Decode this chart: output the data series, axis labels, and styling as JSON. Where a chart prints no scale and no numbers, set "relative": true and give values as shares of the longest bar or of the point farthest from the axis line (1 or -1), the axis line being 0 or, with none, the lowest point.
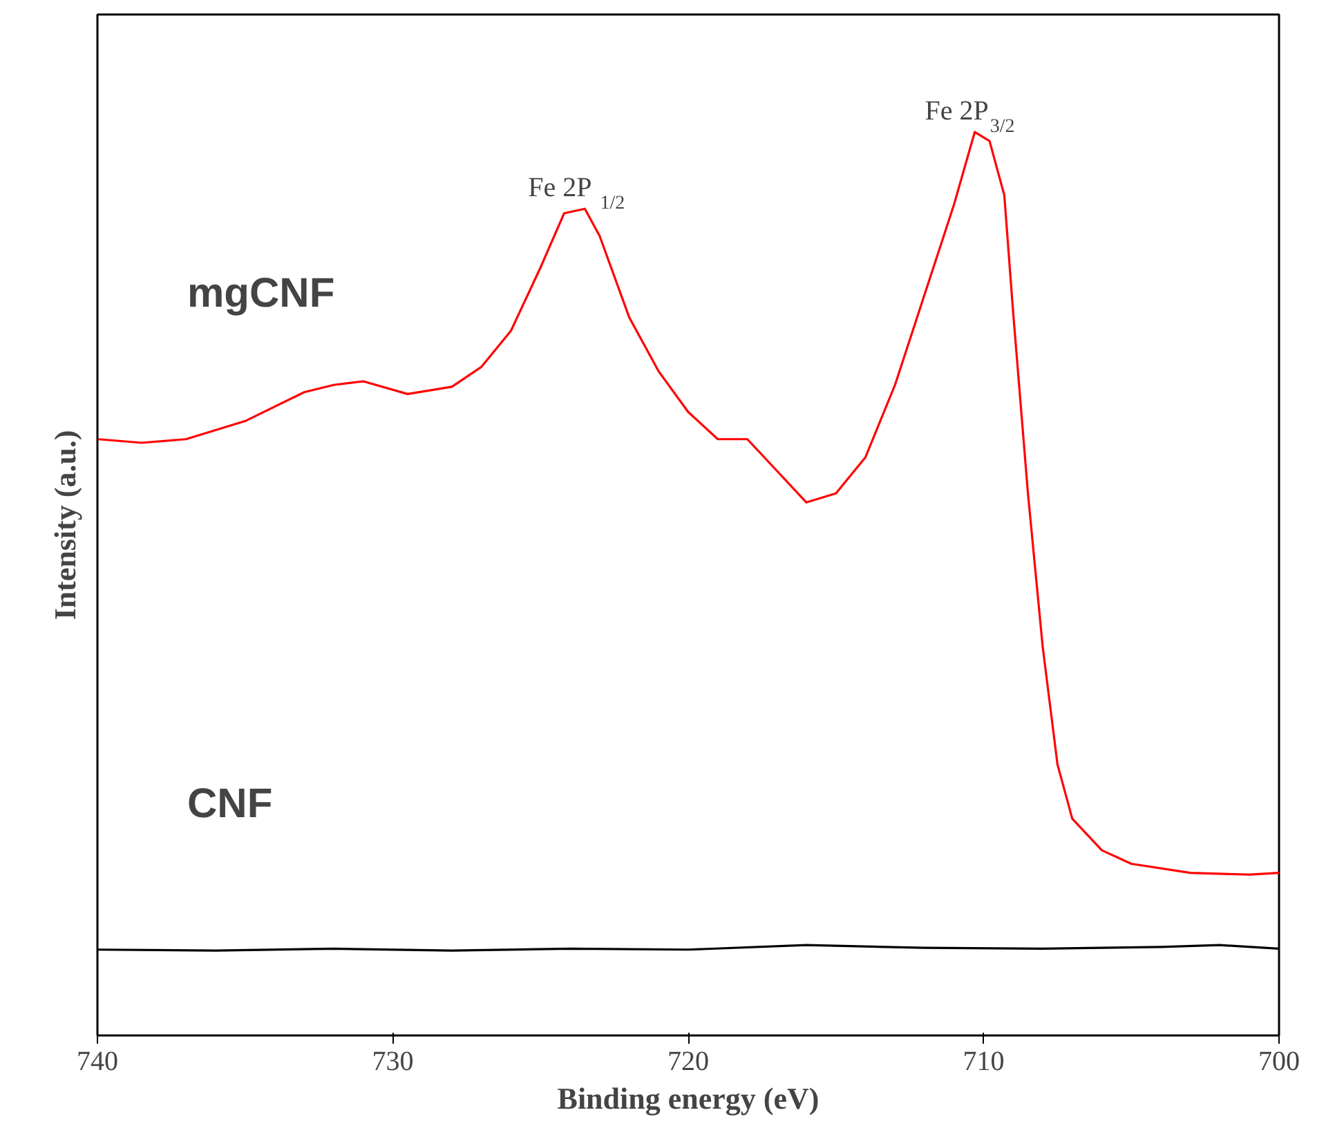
{
  "chart_data": {
    "type": "line",
    "relative": true,
    "xlabel": "Binding energy (eV)",
    "ylabel": "Intensity (a.u.)",
    "xlim": [
      740,
      700
    ],
    "xticks": [
      740,
      730,
      720,
      710,
      700
    ],
    "grid": false,
    "series": [
      {
        "name": "mgCNF",
        "color": "#ff0000",
        "x": [
          740,
          738.5,
          737,
          735,
          733,
          732,
          731,
          729.5,
          728,
          727,
          726,
          725,
          724.2,
          723.5,
          723,
          722,
          721,
          720,
          719,
          718,
          717,
          716,
          715,
          714,
          713,
          712,
          711,
          710.3,
          709.8,
          709.3,
          709,
          708.5,
          708,
          707.5,
          707,
          706,
          705,
          703,
          701,
          700
        ],
        "values": [
          0.66,
          0.656,
          0.66,
          0.68,
          0.712,
          0.72,
          0.724,
          0.71,
          0.718,
          0.74,
          0.78,
          0.85,
          0.91,
          0.915,
          0.885,
          0.795,
          0.735,
          0.69,
          0.66,
          0.66,
          0.625,
          0.59,
          0.6,
          0.64,
          0.72,
          0.82,
          0.92,
          1.0,
          0.99,
          0.93,
          0.8,
          0.6,
          0.43,
          0.3,
          0.24,
          0.205,
          0.19,
          0.18,
          0.178,
          0.18
        ]
      },
      {
        "name": "CNF",
        "color": "#000000",
        "x": [
          740,
          736,
          732,
          728,
          724,
          720,
          716,
          712,
          708,
          704,
          702,
          700
        ],
        "values": [
          0.095,
          0.094,
          0.096,
          0.094,
          0.096,
          0.095,
          0.1,
          0.097,
          0.096,
          0.098,
          0.1,
          0.096
        ]
      }
    ],
    "annotations": [
      {
        "text": "Fe 2P $_{1/2}$",
        "x": 723.5,
        "y": 0.915
      },
      {
        "text": "Fe 2P$_{3/2}$",
        "x": 710.3,
        "y": 1.0
      }
    ]
  }
}
